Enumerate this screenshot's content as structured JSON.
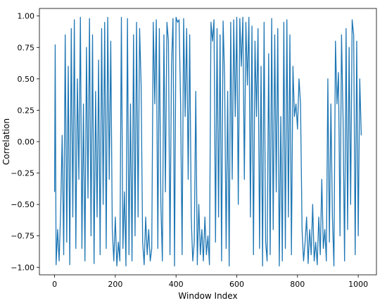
{
  "chart_data": {
    "type": "line",
    "title": "",
    "xlabel": "Window Index",
    "ylabel": "Correlation",
    "xlim": [
      -50,
      1060
    ],
    "ylim": [
      -1.0,
      1.0
    ],
    "xticks": [
      0,
      200,
      400,
      600,
      800,
      1000
    ],
    "yticks": [
      -1.0,
      -0.75,
      -0.5,
      -0.25,
      0.0,
      0.25,
      0.5,
      0.75,
      1.0
    ],
    "ytick_labels": [
      "−1.00",
      "−0.75",
      "−0.50",
      "−0.25",
      "0.00",
      "0.25",
      "0.50",
      "0.75",
      "1.00"
    ],
    "xtick_labels": [
      "0",
      "200",
      "400",
      "600",
      "800",
      "1000"
    ],
    "grid": false,
    "legend": "none",
    "series": [
      {
        "color": "#1f77b4",
        "x_start": 0,
        "x_end": 1010,
        "approx_points": [
          [
            0,
            -0.4
          ],
          [
            2,
            0.77
          ],
          [
            5,
            -0.98
          ],
          [
            10,
            -0.7
          ],
          [
            15,
            -0.95
          ],
          [
            20,
            -0.55
          ],
          [
            25,
            0.05
          ],
          [
            30,
            -0.9
          ],
          [
            35,
            0.85
          ],
          [
            40,
            -0.8
          ],
          [
            45,
            0.6
          ],
          [
            50,
            -0.98
          ],
          [
            55,
            0.9
          ],
          [
            60,
            -0.6
          ],
          [
            65,
            0.97
          ],
          [
            70,
            -0.85
          ],
          [
            75,
            0.5
          ],
          [
            80,
            -0.3
          ],
          [
            85,
            0.99
          ],
          [
            90,
            -0.85
          ],
          [
            95,
            0.3
          ],
          [
            100,
            -0.95
          ],
          [
            105,
            0.75
          ],
          [
            110,
            -0.45
          ],
          [
            115,
            0.98
          ],
          [
            120,
            -0.75
          ],
          [
            125,
            0.85
          ],
          [
            130,
            -0.97
          ],
          [
            135,
            0.4
          ],
          [
            140,
            -0.6
          ],
          [
            145,
            0.65
          ],
          [
            150,
            -0.9
          ],
          [
            155,
            0.9
          ],
          [
            160,
            -0.5
          ],
          [
            165,
            0.95
          ],
          [
            170,
            -0.85
          ],
          [
            175,
            0.99
          ],
          [
            180,
            -0.3
          ],
          [
            185,
            0.8
          ],
          [
            190,
            -0.7
          ],
          [
            195,
            -0.95
          ],
          [
            200,
            -0.6
          ],
          [
            205,
            -0.99
          ],
          [
            210,
            -0.8
          ],
          [
            215,
            -0.95
          ],
          [
            220,
            0.99
          ],
          [
            225,
            -0.85
          ],
          [
            230,
            -0.4
          ],
          [
            235,
            -0.99
          ],
          [
            240,
            0.98
          ],
          [
            245,
            -0.9
          ],
          [
            250,
            0.3
          ],
          [
            255,
            -0.95
          ],
          [
            260,
            0.85
          ],
          [
            265,
            -0.75
          ],
          [
            270,
            0.95
          ],
          [
            275,
            -0.6
          ],
          [
            280,
            0.9
          ],
          [
            285,
            0.45
          ],
          [
            290,
            -0.8
          ],
          [
            295,
            -0.98
          ],
          [
            300,
            -0.6
          ],
          [
            305,
            -0.9
          ],
          [
            310,
            -0.7
          ],
          [
            315,
            -0.95
          ],
          [
            320,
            -0.85
          ],
          [
            325,
            0.95
          ],
          [
            330,
            0.3
          ],
          [
            335,
            0.97
          ],
          [
            340,
            -0.85
          ],
          [
            345,
            0.9
          ],
          [
            350,
            -0.5
          ],
          [
            355,
            -0.95
          ],
          [
            360,
            0.85
          ],
          [
            365,
            -0.4
          ],
          [
            370,
            0.95
          ],
          [
            375,
            0.8
          ],
          [
            380,
            -0.9
          ],
          [
            385,
            0.6
          ],
          [
            390,
            0.98
          ],
          [
            395,
            -0.99
          ],
          [
            400,
            0.99
          ],
          [
            405,
            0.95
          ],
          [
            410,
            0.97
          ],
          [
            415,
            0.3
          ],
          [
            420,
            -0.9
          ],
          [
            425,
            0.98
          ],
          [
            430,
            0.2
          ],
          [
            435,
            0.9
          ],
          [
            440,
            -0.3
          ],
          [
            445,
            0.85
          ],
          [
            450,
            -0.6
          ],
          [
            455,
            -0.95
          ],
          [
            460,
            -0.8
          ],
          [
            465,
            0.4
          ],
          [
            470,
            -0.98
          ],
          [
            475,
            -0.5
          ],
          [
            480,
            -0.9
          ],
          [
            485,
            -0.7
          ],
          [
            490,
            -0.95
          ],
          [
            495,
            -0.6
          ],
          [
            500,
            -0.9
          ],
          [
            505,
            -0.75
          ],
          [
            510,
            -0.98
          ],
          [
            515,
            0.95
          ],
          [
            520,
            0.8
          ],
          [
            525,
            0.97
          ],
          [
            530,
            -0.8
          ],
          [
            535,
            0.9
          ],
          [
            540,
            -0.6
          ],
          [
            545,
            0.85
          ],
          [
            550,
            -0.95
          ],
          [
            555,
            0.96
          ],
          [
            560,
            0.5
          ],
          [
            565,
            -0.85
          ],
          [
            570,
            0.4
          ],
          [
            575,
            -0.99
          ],
          [
            580,
            0.95
          ],
          [
            585,
            -0.3
          ],
          [
            590,
            0.97
          ],
          [
            595,
            0.2
          ],
          [
            600,
            0.99
          ],
          [
            605,
            -0.5
          ],
          [
            610,
            0.98
          ],
          [
            615,
            0.6
          ],
          [
            620,
            0.99
          ],
          [
            625,
            -0.3
          ],
          [
            630,
            0.95
          ],
          [
            635,
            0.45
          ],
          [
            640,
            0.99
          ],
          [
            645,
            -0.6
          ],
          [
            650,
            0.92
          ],
          [
            655,
            -0.9
          ],
          [
            660,
            0.8
          ],
          [
            665,
            0.2
          ],
          [
            670,
            0.9
          ],
          [
            675,
            -0.85
          ],
          [
            680,
            0.6
          ],
          [
            685,
            -0.99
          ],
          [
            690,
            0.95
          ],
          [
            695,
            -0.8
          ],
          [
            700,
            -0.95
          ],
          [
            705,
            0.7
          ],
          [
            710,
            -0.9
          ],
          [
            715,
            0.98
          ],
          [
            720,
            -0.7
          ],
          [
            725,
            0.85
          ],
          [
            730,
            -0.4
          ],
          [
            735,
            0.9
          ],
          [
            740,
            -0.99
          ],
          [
            745,
            0.2
          ],
          [
            750,
            -0.95
          ],
          [
            755,
            0.95
          ],
          [
            760,
            -0.85
          ],
          [
            765,
            0.97
          ],
          [
            770,
            -0.6
          ],
          [
            775,
            0.85
          ],
          [
            780,
            -0.9
          ],
          [
            785,
            0.6
          ],
          [
            790,
            0.2
          ],
          [
            795,
            0.3
          ],
          [
            800,
            0.1
          ],
          [
            805,
            0.5
          ],
          [
            810,
            0.3
          ],
          [
            815,
            -0.7
          ],
          [
            820,
            -0.95
          ],
          [
            825,
            -0.8
          ],
          [
            830,
            -0.6
          ],
          [
            835,
            -0.97
          ],
          [
            840,
            -0.7
          ],
          [
            845,
            -0.9
          ],
          [
            850,
            -0.5
          ],
          [
            855,
            -0.95
          ],
          [
            860,
            -0.8
          ],
          [
            865,
            -0.98
          ],
          [
            870,
            -0.6
          ],
          [
            875,
            -0.9
          ],
          [
            880,
            -0.3
          ],
          [
            885,
            -0.85
          ],
          [
            890,
            -0.7
          ],
          [
            895,
            -0.95
          ],
          [
            900,
            0.5
          ],
          [
            905,
            -0.8
          ],
          [
            910,
            0.3
          ],
          [
            915,
            -0.6
          ],
          [
            920,
            -0.99
          ],
          [
            925,
            0.8
          ],
          [
            930,
            0.3
          ],
          [
            935,
            0.55
          ],
          [
            940,
            -0.75
          ],
          [
            945,
            0.85
          ],
          [
            950,
            0.2
          ],
          [
            955,
            -0.95
          ],
          [
            960,
            0.9
          ],
          [
            965,
            -0.7
          ],
          [
            970,
            0.75
          ],
          [
            975,
            -0.5
          ],
          [
            980,
            0.97
          ],
          [
            985,
            0.85
          ],
          [
            990,
            -0.9
          ],
          [
            995,
            0.8
          ],
          [
            1000,
            -0.75
          ],
          [
            1005,
            0.5
          ],
          [
            1010,
            0.05
          ]
        ]
      }
    ]
  }
}
